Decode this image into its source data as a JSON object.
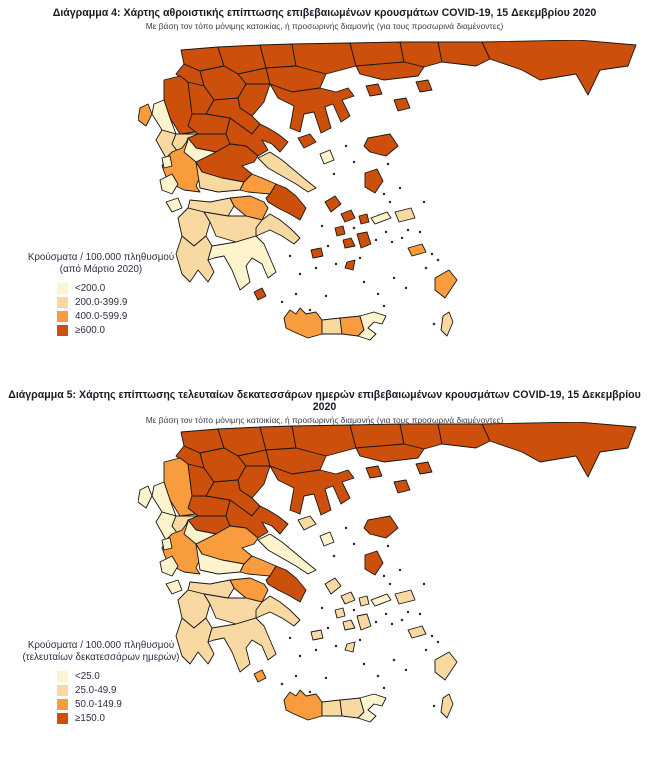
{
  "palette": {
    "class_colors": [
      "#FDF3CD",
      "#F8D9A2",
      "#F99C3D",
      "#CC4F0B"
    ],
    "region_border": "#171717",
    "title_color": "#1b1b26"
  },
  "chart_data": [
    {
      "type": "heatmap",
      "subtype": "choropleth_map_greece",
      "title": "Διάγραμμα 4: Χάρτης αθροιστικής επίπτωσης επιβεβαιωμένων κρουσμάτων COVID-19, 15 Δεκεμβρίου 2020",
      "subtitle": "Με βάση τον τόπο μόνιμης κατοικίας, ή προσωρινής διαμονής (για τους προσωρινά διαμένοντες)",
      "legend_title": [
        "Κρούσματα / 100.000 πληθυσμού",
        "(από Μάρτιο 2020)"
      ],
      "classes": [
        {
          "label": "<200.0",
          "color": "#FDF3CD"
        },
        {
          "label": "200.0-399.9",
          "color": "#F8D9A2"
        },
        {
          "label": "400.0-599.9",
          "color": "#F99C3D"
        },
        {
          "label": "≥600.0",
          "color": "#CC4F0B"
        }
      ],
      "region_class": {
        "florina": 3,
        "pella": 3,
        "kilkis": 3,
        "serres": 3,
        "drama": 3,
        "xanthi": 3,
        "rhodopi": 3,
        "evros": 3,
        "kavala": 3,
        "kastoria": 3,
        "kozani": 3,
        "imathia": 3,
        "thessaloniki": 3,
        "pieria": 3,
        "chalkidiki": 3,
        "thasos": 3,
        "samothrace": 3,
        "lemnos": 3,
        "ioannina": 3,
        "grevena": 3,
        "trikala": 3,
        "larissa": 3,
        "karditsa": 3,
        "magnesia": 3,
        "phthiotis": 3,
        "attica": 3,
        "sporades": 3,
        "andros": 3,
        "tinos": 3,
        "mykonos": 3,
        "syros": 3,
        "paros": 3,
        "naxos": 3,
        "milos": 3,
        "santorini": 3,
        "chios": 3,
        "lesbos": 3,
        "kythira": 3,
        "aetolia": 2,
        "boeotia": 2,
        "corinthia": 2,
        "corfu": 2,
        "kos": 2,
        "rhodes": 2,
        "chania": 2,
        "heraklion": 2,
        "preveza": 1,
        "arta": 1,
        "phocis": 1,
        "euboea": 1,
        "achaea": 1,
        "elis": 1,
        "arcadia": 1,
        "argolis": 1,
        "messenia": 1,
        "samos": 1,
        "karpathos": 1,
        "rethymno": 1,
        "thesprotia": 0,
        "evrytania": 0,
        "laconia": 0,
        "lefkada": 0,
        "kefalonia": 0,
        "zakynthos": 0,
        "ikaria": 0,
        "skyros": 0,
        "lasithi": 0
      }
    },
    {
      "type": "heatmap",
      "subtype": "choropleth_map_greece",
      "title": "Διάγραμμα 5: Χάρτης επίπτωσης τελευταίων δεκατεσσάρων ημερών επιβεβαιωμένων κρουσμάτων COVID-19, 15 Δεκεμβρίου 2020",
      "subtitle": "Με βάση τον τόπο μόνιμης κατοικίας, ή προσωρινής διαμονής (για τους προσωρινά διαμένοντες)",
      "legend_title": [
        "Κρούσματα / 100.000 πληθυσμού",
        "(τελευταίων δεκατεσσάρων ημερών)"
      ],
      "classes": [
        {
          "label": "<25.0",
          "color": "#FDF3CD"
        },
        {
          "label": "25.0-49.9",
          "color": "#F8D9A2"
        },
        {
          "label": "50.0-149.9",
          "color": "#F99C3D"
        },
        {
          "label": "≥150.0",
          "color": "#CC4F0B"
        }
      ],
      "region_class": {
        "florina": 3,
        "pella": 3,
        "kilkis": 3,
        "serres": 3,
        "drama": 3,
        "xanthi": 3,
        "rhodopi": 3,
        "evros": 3,
        "kavala": 3,
        "kastoria": 3,
        "kozani": 3,
        "imathia": 3,
        "thessaloniki": 3,
        "pieria": 3,
        "chalkidiki": 3,
        "thasos": 3,
        "samothrace": 3,
        "lemnos": 3,
        "grevena": 3,
        "trikala": 3,
        "larissa": 3,
        "karditsa": 3,
        "magnesia": 3,
        "attica": 3,
        "chios": 3,
        "lesbos": 3,
        "ioannina": 2,
        "aetolia": 2,
        "phthiotis": 2,
        "boeotia": 2,
        "corinthia": 2,
        "kythira": 2,
        "chania": 2,
        "arta": 1,
        "achaea": 1,
        "elis": 1,
        "arcadia": 1,
        "argolis": 1,
        "messenia": 1,
        "laconia": 1,
        "samos": 1,
        "karpathos": 1,
        "rethymno": 1,
        "heraklion": 1,
        "sporades": 1,
        "andros": 1,
        "tinos": 1,
        "mykonos": 1,
        "syros": 1,
        "paros": 1,
        "naxos": 1,
        "milos": 1,
        "santorini": 1,
        "kos": 1,
        "rhodes": 1,
        "thesprotia": 0,
        "preveza": 0,
        "corfu": 0,
        "evrytania": 0,
        "phocis": 0,
        "euboea": 0,
        "lefkada": 0,
        "kefalonia": 0,
        "zakynthos": 0,
        "ikaria": 0,
        "skyros": 0,
        "lasithi": 0
      }
    }
  ]
}
